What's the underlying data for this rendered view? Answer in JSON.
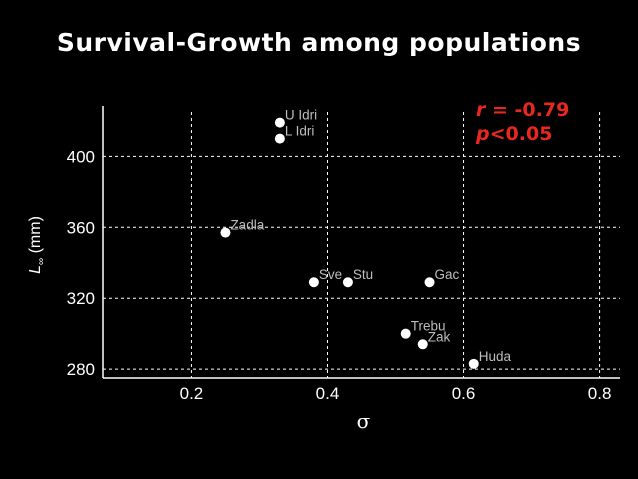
{
  "title": "Survival-Growth among populations",
  "stats": {
    "r_label": "r",
    "r_value": " = -0.79",
    "p_label": "p",
    "p_value": "<0.05",
    "color": "#e8281e"
  },
  "colors": {
    "background": "#000000",
    "text": "#ffffff",
    "point": "#ffffff",
    "point_label": "#bdbdbd",
    "grid": "#ffffff"
  },
  "chart_data": {
    "type": "scatter",
    "xlabel": "σ",
    "ylabel_main": "L",
    "ylabel_sub": "∞",
    "ylabel_unit": " (mm)",
    "xlim": [
      0.07,
      0.83
    ],
    "ylim": [
      275,
      425
    ],
    "xticks": [
      0.2,
      0.4,
      0.6,
      0.8
    ],
    "xtick_labels": [
      "0.2",
      "0.4",
      "0.6",
      "0.8"
    ],
    "yticks": [
      280,
      320,
      360,
      400
    ],
    "ytick_labels": [
      "280",
      "320",
      "360",
      "400"
    ],
    "grid": true,
    "points": [
      {
        "label": "U Idri",
        "x": 0.33,
        "y": 419
      },
      {
        "label": "L Idri",
        "x": 0.33,
        "y": 410
      },
      {
        "label": "Zadla",
        "x": 0.25,
        "y": 357
      },
      {
        "label": "Sve",
        "x": 0.38,
        "y": 329
      },
      {
        "label": "Stu",
        "x": 0.43,
        "y": 329
      },
      {
        "label": "Gac",
        "x": 0.55,
        "y": 329
      },
      {
        "label": "Trebu",
        "x": 0.515,
        "y": 300
      },
      {
        "label": "Zak",
        "x": 0.54,
        "y": 294
      },
      {
        "label": "Huda",
        "x": 0.615,
        "y": 283
      }
    ]
  }
}
